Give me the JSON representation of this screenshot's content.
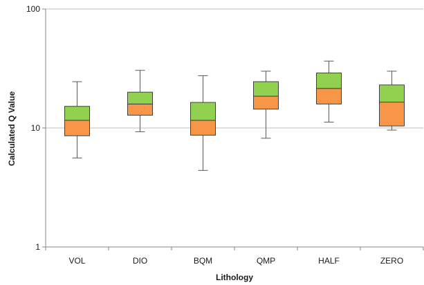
{
  "chart_data": {
    "type": "box",
    "xlabel": "Lithology",
    "ylabel": "Calculated Q Value",
    "yscale": "log",
    "ylim": [
      1,
      100
    ],
    "yticks": [
      "1",
      "10",
      "100"
    ],
    "grid": "horizontal",
    "categories": [
      "VOL",
      "DIO",
      "BQM",
      "QMP",
      "HALF",
      "ZERO"
    ],
    "boxes": [
      {
        "min": 5.6,
        "q1": 8.6,
        "median": 11.6,
        "q3": 15.2,
        "max": 24.5
      },
      {
        "min": 9.3,
        "q1": 12.8,
        "median": 15.9,
        "q3": 20.0,
        "max": 30.5
      },
      {
        "min": 4.4,
        "q1": 8.7,
        "median": 11.6,
        "q3": 16.4,
        "max": 27.5
      },
      {
        "min": 8.2,
        "q1": 14.4,
        "median": 18.5,
        "q3": 24.5,
        "max": 30.0
      },
      {
        "min": 11.2,
        "q1": 15.9,
        "median": 21.5,
        "q3": 29.0,
        "max": 36.5
      },
      {
        "min": 9.6,
        "q1": 10.4,
        "median": 16.5,
        "q3": 23.0,
        "max": 30.0
      }
    ],
    "colors": {
      "upper_box": "#92d050",
      "lower_box": "#f79646",
      "outline": "#404040",
      "whisker": "#595959",
      "grid": "#bfbfbf",
      "axis": "#868686"
    }
  }
}
